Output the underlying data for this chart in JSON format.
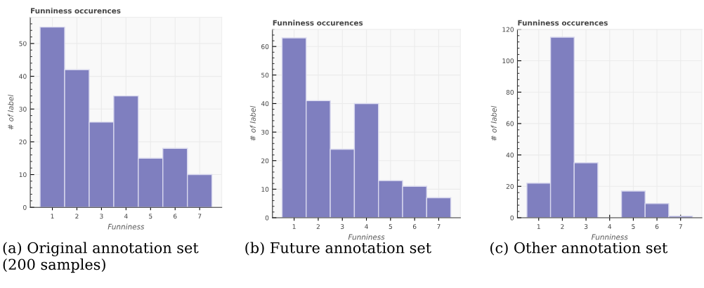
{
  "chart_data": [
    {
      "type": "histogram",
      "title": "Funniness occurences",
      "xlabel": "Funniness",
      "ylabel": "# of label",
      "bins": [
        0.5,
        1.5,
        2.5,
        3.5,
        4.5,
        5.5,
        6.5,
        7.5
      ],
      "values": [
        55,
        42,
        26,
        34,
        15,
        18,
        10
      ],
      "color": "#7f7fbf",
      "xlim": [
        0.1,
        7.9
      ],
      "ylim": [
        0,
        58
      ],
      "xticks": [
        1,
        2,
        3,
        4,
        5,
        6,
        7
      ],
      "yticks": [
        0,
        10,
        20,
        30,
        40,
        50
      ],
      "grid": true,
      "annotations": [
        "(a) Original annotation set (200 samples)"
      ]
    },
    {
      "type": "histogram",
      "title": "Funniness occurences",
      "xlabel": "Funniness",
      "ylabel": "# of label",
      "bins": [
        0.5,
        1.5,
        2.5,
        3.5,
        4.5,
        5.5,
        6.5,
        7.5
      ],
      "values": [
        63,
        41,
        24,
        40,
        13,
        11,
        7
      ],
      "color": "#7f7fbf",
      "xlim": [
        0.1,
        7.9
      ],
      "ylim": [
        0,
        66
      ],
      "xticks": [
        1,
        2,
        3,
        4,
        5,
        6,
        7
      ],
      "yticks": [
        0,
        10,
        20,
        30,
        40,
        50,
        60
      ],
      "grid": true,
      "annotations": [
        "(b) Future annotation set"
      ]
    },
    {
      "type": "histogram",
      "title": "Funniness occurences",
      "xlabel": "Funniness",
      "ylabel": "# of label",
      "bins": [
        0.5,
        1.5,
        2.5,
        3.5,
        4.5,
        5.5,
        6.5,
        7.5
      ],
      "values": [
        22,
        115,
        35,
        0,
        17,
        9,
        1
      ],
      "color": "#7f7fbf",
      "xlim": [
        0.1,
        7.9
      ],
      "ylim": [
        0,
        120
      ],
      "xticks": [
        1,
        2,
        3,
        4,
        5,
        6,
        7
      ],
      "yticks": [
        0,
        20,
        40,
        60,
        80,
        100,
        120
      ],
      "grid": true,
      "annotations": [
        "(c) Other annotation set"
      ]
    }
  ]
}
